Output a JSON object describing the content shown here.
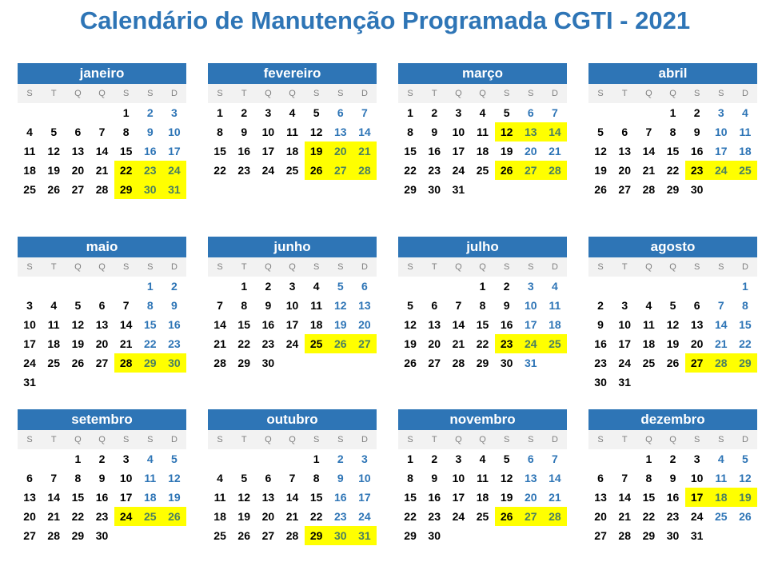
{
  "title": "Calendário de Manutenção Programada CGTI - 2021",
  "weekdays": [
    "S",
    "T",
    "Q",
    "Q",
    "S",
    "S",
    "D"
  ],
  "colors": {
    "header": "#2E75B6",
    "highlight": "#FFFF00",
    "weekend": "#2E75B6"
  },
  "months": [
    {
      "name": "janeiro",
      "weeks": [
        [
          null,
          null,
          null,
          null,
          1,
          2,
          3
        ],
        [
          4,
          5,
          6,
          7,
          8,
          9,
          10
        ],
        [
          11,
          12,
          13,
          14,
          15,
          16,
          17
        ],
        [
          18,
          19,
          20,
          21,
          22,
          23,
          24
        ],
        [
          25,
          26,
          27,
          28,
          29,
          30,
          31
        ]
      ],
      "highlighted": [
        22,
        23,
        24,
        29,
        30,
        31
      ]
    },
    {
      "name": "fevereiro",
      "weeks": [
        [
          1,
          2,
          3,
          4,
          5,
          6,
          7
        ],
        [
          8,
          9,
          10,
          11,
          12,
          13,
          14
        ],
        [
          15,
          16,
          17,
          18,
          19,
          20,
          21
        ],
        [
          22,
          23,
          24,
          25,
          26,
          27,
          28
        ]
      ],
      "highlighted": [
        19,
        20,
        21,
        26,
        27,
        28
      ]
    },
    {
      "name": "março",
      "weeks": [
        [
          1,
          2,
          3,
          4,
          5,
          6,
          7
        ],
        [
          8,
          9,
          10,
          11,
          12,
          13,
          14
        ],
        [
          15,
          16,
          17,
          18,
          19,
          20,
          21
        ],
        [
          22,
          23,
          24,
          25,
          26,
          27,
          28
        ],
        [
          29,
          30,
          31
        ]
      ],
      "highlighted": [
        12,
        13,
        14,
        26,
        27,
        28
      ]
    },
    {
      "name": "abril",
      "weeks": [
        [
          null,
          null,
          null,
          1,
          2,
          3,
          4
        ],
        [
          5,
          6,
          7,
          8,
          9,
          10,
          11
        ],
        [
          12,
          13,
          14,
          15,
          16,
          17,
          18
        ],
        [
          19,
          20,
          21,
          22,
          23,
          24,
          25
        ],
        [
          26,
          27,
          28,
          29,
          30
        ]
      ],
      "highlighted": [
        23,
        24,
        25
      ]
    },
    {
      "name": "maio",
      "weeks": [
        [
          null,
          null,
          null,
          null,
          null,
          1,
          2
        ],
        [
          3,
          4,
          5,
          6,
          7,
          8,
          9
        ],
        [
          10,
          11,
          12,
          13,
          14,
          15,
          16
        ],
        [
          17,
          18,
          19,
          20,
          21,
          22,
          23
        ],
        [
          24,
          25,
          26,
          27,
          28,
          29,
          30
        ],
        [
          31
        ]
      ],
      "highlighted": [
        28,
        29,
        30
      ]
    },
    {
      "name": "junho",
      "weeks": [
        [
          null,
          1,
          2,
          3,
          4,
          5,
          6
        ],
        [
          7,
          8,
          9,
          10,
          11,
          12,
          13
        ],
        [
          14,
          15,
          16,
          17,
          18,
          19,
          20
        ],
        [
          21,
          22,
          23,
          24,
          25,
          26,
          27
        ],
        [
          28,
          29,
          30
        ]
      ],
      "highlighted": [
        25,
        26,
        27
      ]
    },
    {
      "name": "julho",
      "weeks": [
        [
          null,
          null,
          null,
          1,
          2,
          3,
          4
        ],
        [
          5,
          6,
          7,
          8,
          9,
          10,
          11
        ],
        [
          12,
          13,
          14,
          15,
          16,
          17,
          18
        ],
        [
          19,
          20,
          21,
          22,
          23,
          24,
          25
        ],
        [
          26,
          27,
          28,
          29,
          30,
          31
        ]
      ],
      "highlighted": [
        23,
        24,
        25
      ]
    },
    {
      "name": "agosto",
      "weeks": [
        [
          null,
          null,
          null,
          null,
          null,
          null,
          1
        ],
        [
          2,
          3,
          4,
          5,
          6,
          7,
          8
        ],
        [
          9,
          10,
          11,
          12,
          13,
          14,
          15
        ],
        [
          16,
          17,
          18,
          19,
          20,
          21,
          22
        ],
        [
          23,
          24,
          25,
          26,
          27,
          28,
          29
        ],
        [
          30,
          31
        ]
      ],
      "highlighted": [
        27,
        28,
        29
      ]
    },
    {
      "name": "setembro",
      "weeks": [
        [
          null,
          null,
          1,
          2,
          3,
          4,
          5
        ],
        [
          6,
          7,
          8,
          9,
          10,
          11,
          12
        ],
        [
          13,
          14,
          15,
          16,
          17,
          18,
          19
        ],
        [
          20,
          21,
          22,
          23,
          24,
          25,
          26
        ],
        [
          27,
          28,
          29,
          30
        ]
      ],
      "highlighted": [
        24,
        25,
        26
      ]
    },
    {
      "name": "outubro",
      "weeks": [
        [
          null,
          null,
          null,
          null,
          1,
          2,
          3
        ],
        [
          4,
          5,
          6,
          7,
          8,
          9,
          10
        ],
        [
          11,
          12,
          13,
          14,
          15,
          16,
          17
        ],
        [
          18,
          19,
          20,
          21,
          22,
          23,
          24
        ],
        [
          25,
          26,
          27,
          28,
          29,
          30,
          31
        ]
      ],
      "highlighted": [
        29,
        30,
        31
      ]
    },
    {
      "name": "novembro",
      "weeks": [
        [
          1,
          2,
          3,
          4,
          5,
          6,
          7
        ],
        [
          8,
          9,
          10,
          11,
          12,
          13,
          14
        ],
        [
          15,
          16,
          17,
          18,
          19,
          20,
          21
        ],
        [
          22,
          23,
          24,
          25,
          26,
          27,
          28
        ],
        [
          29,
          30
        ]
      ],
      "highlighted": [
        26,
        27,
        28
      ]
    },
    {
      "name": "dezembro",
      "weeks": [
        [
          null,
          null,
          1,
          2,
          3,
          4,
          5
        ],
        [
          6,
          7,
          8,
          9,
          10,
          11,
          12
        ],
        [
          13,
          14,
          15,
          16,
          17,
          18,
          19
        ],
        [
          20,
          21,
          22,
          23,
          24,
          25,
          26
        ],
        [
          27,
          28,
          29,
          30,
          31
        ]
      ],
      "highlighted": [
        17,
        18,
        19
      ]
    }
  ]
}
